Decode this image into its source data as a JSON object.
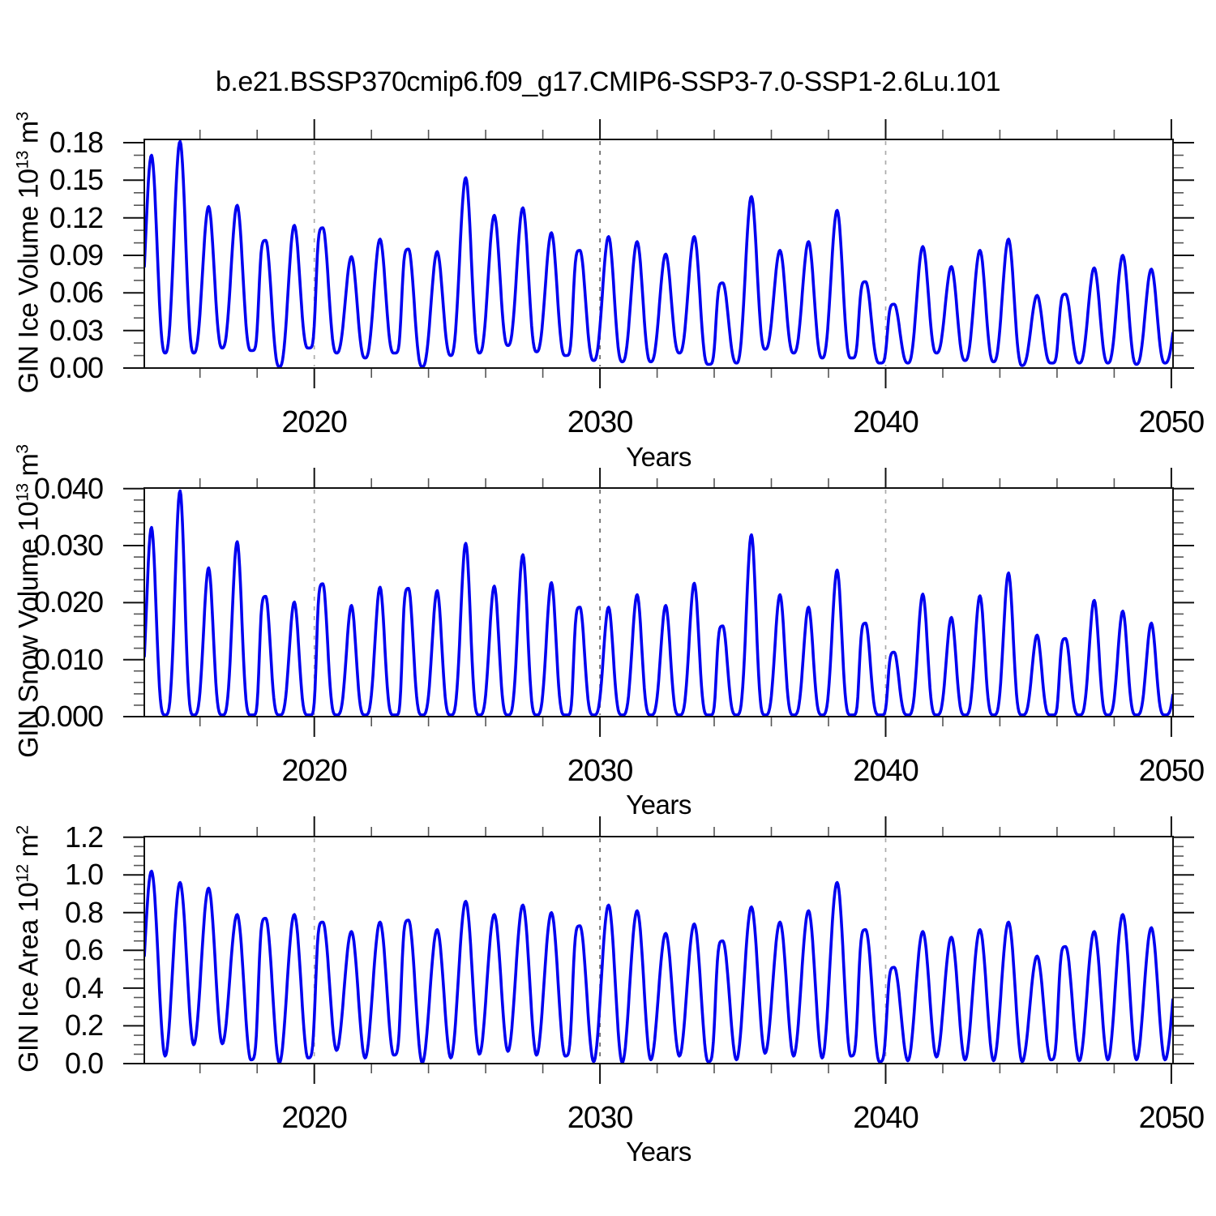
{
  "title": "b.e21.BSSP370cmip6.f09_g17.CMIP6-SSP3-7.0-SSP1-2.6Lu.101",
  "xlabel": "Years",
  "colors": {
    "line": "#0000F0",
    "axis": "#111111",
    "tick_major": "#111111",
    "tick_minor": "#555555",
    "grid_light": "#ababab",
    "grid_dark": "#666666",
    "background": "#ffffff",
    "text": "#000000"
  },
  "xaxis": {
    "label": "Years",
    "tick_years": [
      2020,
      2030,
      2040,
      2050
    ],
    "tick_labels": [
      "2020",
      "2030",
      "2040",
      "2050"
    ],
    "minor_step_years": 2,
    "minor_first": 2016,
    "minor_last": 2048,
    "gridline_years": [
      2020,
      2030,
      2040
    ],
    "gridline_emphasis_year": 2030,
    "xlim": [
      2014.05,
      2050.06
    ]
  },
  "chart_data": [
    {
      "type": "line",
      "name": "gin-ice-volume",
      "ylabel": {
        "prefix": "GIN Ice Volume 10",
        "power": "13",
        "unit": " m",
        "unit_power": "3"
      },
      "ylabel_text": "GIN Ice Volume 10^13 m^3",
      "xlabel": "Years",
      "ylim": [
        0,
        0.1826
      ],
      "yticks": {
        "values": [
          0.0,
          0.03,
          0.06,
          0.09,
          0.12,
          0.15,
          0.18
        ],
        "labels": [
          "0.00",
          "0.03",
          "0.06",
          "0.09",
          "0.12",
          "0.15",
          "0.18"
        ]
      },
      "y_minor_step": 0.01,
      "grid": "vertical dashed at 2020/2030/2040 only",
      "legend": "none",
      "seasonality": "annual cycle: maximum in Mar-Apr, minimum in Sep-Oct; monthly curve oscillates between the per-year extremes below",
      "years": [
        2014,
        2015,
        2016,
        2017,
        2018,
        2019,
        2020,
        2021,
        2022,
        2023,
        2024,
        2025,
        2026,
        2027,
        2028,
        2029,
        2030,
        2031,
        2032,
        2033,
        2034,
        2035,
        2036,
        2037,
        2038,
        2039,
        2040,
        2041,
        2042,
        2043,
        2044,
        2045,
        2046,
        2047,
        2048,
        2049
      ],
      "annual_max": [
        0.17,
        0.181,
        0.129,
        0.13,
        0.102,
        0.114,
        0.112,
        0.089,
        0.103,
        0.095,
        0.093,
        0.152,
        0.122,
        0.128,
        0.108,
        0.094,
        0.105,
        0.101,
        0.091,
        0.105,
        0.068,
        0.137,
        0.094,
        0.101,
        0.126,
        0.069,
        0.051,
        0.097,
        0.081,
        0.094,
        0.103,
        0.058,
        0.059,
        0.08,
        0.09,
        0.079
      ],
      "annual_min": [
        0.012,
        0.012,
        0.016,
        0.014,
        0.001,
        0.016,
        0.012,
        0.008,
        0.012,
        0.001,
        0.01,
        0.012,
        0.018,
        0.013,
        0.01,
        0.006,
        0.005,
        0.005,
        0.012,
        0.003,
        0.004,
        0.015,
        0.012,
        0.008,
        0.008,
        0.004,
        0.004,
        0.012,
        0.006,
        0.005,
        0.002,
        0.004,
        0.004,
        0.004,
        0.003,
        0.004
      ],
      "end_rise_peak": 0.07,
      "shape_power": 1.35,
      "shoulder_years": [
        2018,
        2020,
        2023,
        2029,
        2034,
        2039,
        2040,
        2046
      ]
    },
    {
      "type": "line",
      "name": "gin-snow-volume",
      "ylabel": {
        "prefix": "GIN Snow Volume 10",
        "power": "13",
        "unit": " m",
        "unit_power": "3"
      },
      "ylabel_text": "GIN Snow Volume 10^13 m^3",
      "xlabel": "Years",
      "ylim": [
        0,
        0.0401
      ],
      "yticks": {
        "values": [
          0.0,
          0.01,
          0.02,
          0.03,
          0.04
        ],
        "labels": [
          "0.000",
          "0.010",
          "0.020",
          "0.030",
          "0.040"
        ]
      },
      "y_minor_step": 0.002,
      "grid": "vertical dashed at 2020/2030/2040 only",
      "legend": "none",
      "seasonality": "annual cycle: maximum in Mar-Apr, minimum (~0) in Aug-Oct; monthly curve oscillates between the per-year extremes below",
      "years": [
        2014,
        2015,
        2016,
        2017,
        2018,
        2019,
        2020,
        2021,
        2022,
        2023,
        2024,
        2025,
        2026,
        2027,
        2028,
        2029,
        2030,
        2031,
        2032,
        2033,
        2034,
        2035,
        2036,
        2037,
        2038,
        2039,
        2040,
        2041,
        2042,
        2043,
        2044,
        2045,
        2046,
        2047,
        2048,
        2049
      ],
      "annual_max": [
        0.0332,
        0.0396,
        0.0261,
        0.0307,
        0.0211,
        0.0201,
        0.0233,
        0.0195,
        0.0227,
        0.0225,
        0.0221,
        0.0304,
        0.0229,
        0.0284,
        0.0235,
        0.0192,
        0.0192,
        0.0214,
        0.0195,
        0.0234,
        0.0159,
        0.0319,
        0.0214,
        0.0192,
        0.0257,
        0.0164,
        0.0113,
        0.0215,
        0.0174,
        0.0212,
        0.0252,
        0.0143,
        0.0137,
        0.0204,
        0.0185,
        0.0164
      ],
      "annual_min": [
        0.0003,
        0.0003,
        0.0003,
        0.0003,
        0.0003,
        0.0003,
        0.0003,
        0.0003,
        0.0003,
        0.0003,
        0.0003,
        0.0003,
        0.0003,
        0.0003,
        0.0003,
        0.0003,
        0.0003,
        0.0003,
        0.0003,
        0.0003,
        0.0003,
        0.0003,
        0.0003,
        0.0003,
        0.0003,
        0.0003,
        0.0003,
        0.0003,
        0.0003,
        0.0003,
        0.0003,
        0.0003,
        0.0003,
        0.0003,
        0.0003,
        0.0003
      ],
      "end_rise_peak": 0.015,
      "shape_power": 1.9,
      "shoulder_years": [
        2018,
        2020,
        2023,
        2029,
        2034,
        2039,
        2040,
        2046
      ]
    },
    {
      "type": "line",
      "name": "gin-ice-area",
      "ylabel": {
        "prefix": "GIN Ice Area 10",
        "power": "12",
        "unit": " m",
        "unit_power": "2"
      },
      "ylabel_text": "GIN Ice Area 10^12 m^2",
      "xlabel": "Years",
      "ylim": [
        0,
        1.203
      ],
      "yticks": {
        "values": [
          0.0,
          0.2,
          0.4,
          0.6,
          0.8,
          1.0,
          1.2
        ],
        "labels": [
          "0.0",
          "0.2",
          "0.4",
          "0.6",
          "0.8",
          "1.0",
          "1.2"
        ]
      },
      "y_minor_step": 0.05,
      "grid": "vertical dashed at 2020/2030/2040 only",
      "legend": "none",
      "seasonality": "annual cycle: maximum in Mar-Apr, minimum in Sep-Oct; monthly curve oscillates between the per-year extremes below",
      "years": [
        2014,
        2015,
        2016,
        2017,
        2018,
        2019,
        2020,
        2021,
        2022,
        2023,
        2024,
        2025,
        2026,
        2027,
        2028,
        2029,
        2030,
        2031,
        2032,
        2033,
        2034,
        2035,
        2036,
        2037,
        2038,
        2039,
        2040,
        2041,
        2042,
        2043,
        2044,
        2045,
        2046,
        2047,
        2048,
        2049
      ],
      "annual_max": [
        1.02,
        0.96,
        0.93,
        0.79,
        0.77,
        0.79,
        0.75,
        0.7,
        0.75,
        0.76,
        0.71,
        0.86,
        0.79,
        0.84,
        0.8,
        0.73,
        0.84,
        0.81,
        0.69,
        0.74,
        0.65,
        0.83,
        0.75,
        0.81,
        0.96,
        0.71,
        0.51,
        0.7,
        0.67,
        0.71,
        0.75,
        0.57,
        0.62,
        0.7,
        0.79,
        0.72
      ],
      "annual_min": [
        0.04,
        0.1,
        0.105,
        0.02,
        0.004,
        0.03,
        0.07,
        0.03,
        0.045,
        0.004,
        0.03,
        0.05,
        0.065,
        0.045,
        0.04,
        0.01,
        0.005,
        0.02,
        0.04,
        0.01,
        0.02,
        0.055,
        0.04,
        0.03,
        0.04,
        0.01,
        0.015,
        0.035,
        0.02,
        0.015,
        0.01,
        0.02,
        0.015,
        0.02,
        0.02,
        0.02
      ],
      "end_rise_peak": 0.7,
      "shape_power": 1.0,
      "shoulder_years": [
        2018,
        2020,
        2023,
        2029,
        2034,
        2039,
        2040,
        2046
      ]
    }
  ]
}
